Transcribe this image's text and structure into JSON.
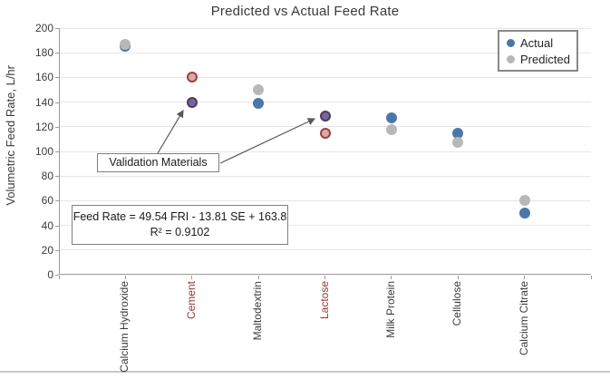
{
  "title": "Predicted vs Actual Feed Rate",
  "y_axis": {
    "title": "Volumetric Feed Rate, L/hr",
    "tick_labels": [
      "0",
      "20",
      "40",
      "60",
      "80",
      "100",
      "120",
      "140",
      "160",
      "180",
      "200"
    ]
  },
  "legend": {
    "items": [
      {
        "label": "Actual"
      },
      {
        "label": "Predicted"
      }
    ]
  },
  "annotations": {
    "validation_label": "Validation Materials",
    "equation_line1": "Feed Rate = 49.54 FRI - 13.81 SE + 163.8",
    "equation_line2": "R² = 0.9102"
  },
  "colors": {
    "actual": "#4a77a8",
    "predicted": "#b8b8b8",
    "validation_actual_fill": "#74689a",
    "validation_actual_stroke": "#50395c",
    "validation_predicted_fill": "#d9a9a9",
    "validation_predicted_stroke": "#9b403f",
    "category_label": "#3b3b3b",
    "category_label_validation": "#953735",
    "gridline": "#e8e6e3",
    "axis": "#9b9b9b",
    "arrow": "#595959"
  },
  "chart_data": {
    "type": "scatter",
    "title": "Predicted vs Actual Feed Rate",
    "xlabel": "",
    "ylabel": "Volumetric Feed Rate, L/hr",
    "ylim": [
      0,
      200
    ],
    "ytick_step": 20,
    "grid": true,
    "legend_position": "top-right",
    "categories": [
      "Calcium Hydroxide",
      "Cement",
      "Maltodextrin",
      "Lactose",
      "Milk Protein",
      "Cellulose",
      "Calcium Citrate"
    ],
    "validation_categories": [
      "Cement",
      "Lactose"
    ],
    "series": [
      {
        "name": "Actual",
        "color": "#4a77a8",
        "values": [
          185,
          140,
          139,
          129,
          127,
          115,
          50
        ]
      },
      {
        "name": "Predicted",
        "color": "#b8b8b8",
        "values": [
          187,
          160,
          150,
          115,
          118,
          107,
          60
        ]
      }
    ],
    "annotation_equation": "Feed Rate = 49.54 FRI - 13.81 SE + 163.8 ; R² = 0.9102"
  }
}
